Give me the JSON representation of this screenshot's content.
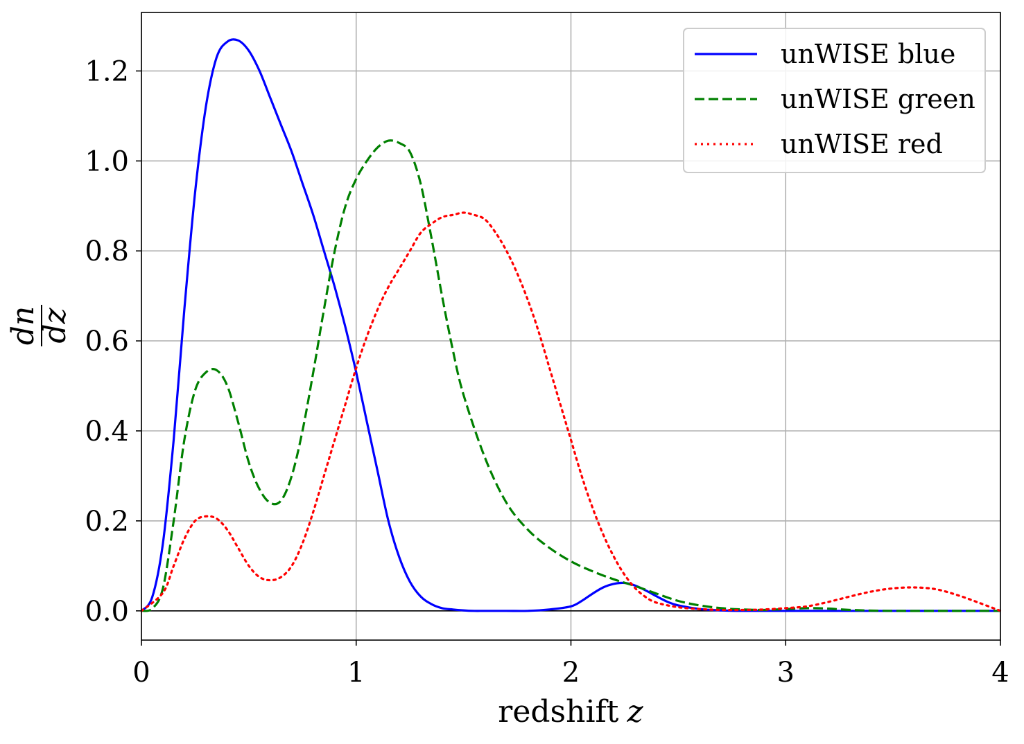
{
  "chart_data": {
    "type": "line",
    "xlabel": "redshift",
    "xlabel_var": "z",
    "ylabel_num": "dn",
    "ylabel_den": "dz",
    "xlim": [
      0,
      4
    ],
    "ylim": [
      -0.065,
      1.33
    ],
    "xticks": [
      0,
      1,
      2,
      3,
      4
    ],
    "xtick_labels": [
      "0",
      "1",
      "2",
      "3",
      "4"
    ],
    "yticks": [
      0.0,
      0.2,
      0.4,
      0.6,
      0.8,
      1.0,
      1.2
    ],
    "ytick_labels": [
      "0.0",
      "0.2",
      "0.4",
      "0.6",
      "0.8",
      "1.0",
      "1.2"
    ],
    "grid": true,
    "legend_position": "top-right",
    "series": [
      {
        "name": "unWISE blue",
        "color": "#0000ff",
        "style": "solid",
        "x": [
          0,
          0.05,
          0.1,
          0.15,
          0.2,
          0.25,
          0.3,
          0.35,
          0.4,
          0.45,
          0.5,
          0.55,
          0.6,
          0.65,
          0.7,
          0.75,
          0.8,
          0.85,
          0.9,
          0.95,
          1.0,
          1.05,
          1.1,
          1.15,
          1.2,
          1.25,
          1.3,
          1.35,
          1.4,
          1.45,
          1.5,
          1.55,
          1.6,
          1.7,
          1.8,
          1.9,
          2.0,
          2.05,
          2.1,
          2.15,
          2.2,
          2.25,
          2.3,
          2.35,
          2.4,
          2.45,
          2.5,
          2.6,
          2.7,
          2.8,
          3.0,
          3.5,
          4.0
        ],
        "y": [
          0.0,
          0.03,
          0.15,
          0.38,
          0.67,
          0.93,
          1.12,
          1.23,
          1.265,
          1.268,
          1.245,
          1.2,
          1.14,
          1.08,
          1.02,
          0.95,
          0.88,
          0.8,
          0.72,
          0.63,
          0.53,
          0.42,
          0.31,
          0.2,
          0.12,
          0.065,
          0.032,
          0.015,
          0.006,
          0.003,
          0.001,
          0.0,
          0.0,
          0.0,
          0.0,
          0.003,
          0.01,
          0.022,
          0.038,
          0.052,
          0.06,
          0.062,
          0.056,
          0.045,
          0.032,
          0.02,
          0.012,
          0.004,
          0.001,
          0.0,
          0.0,
          0.0,
          0.0
        ]
      },
      {
        "name": "unWISE green",
        "color": "#008000",
        "style": "dashed",
        "x": [
          0,
          0.05,
          0.1,
          0.15,
          0.2,
          0.25,
          0.3,
          0.35,
          0.4,
          0.45,
          0.5,
          0.55,
          0.6,
          0.65,
          0.7,
          0.75,
          0.8,
          0.85,
          0.9,
          0.95,
          1.0,
          1.05,
          1.1,
          1.15,
          1.2,
          1.25,
          1.3,
          1.35,
          1.4,
          1.45,
          1.5,
          1.6,
          1.7,
          1.8,
          1.9,
          2.0,
          2.1,
          2.2,
          2.3,
          2.4,
          2.5,
          2.6,
          2.7,
          2.8,
          2.9,
          3.0,
          3.1,
          3.2,
          3.3,
          3.5,
          4.0
        ],
        "y": [
          0.0,
          0.005,
          0.05,
          0.2,
          0.38,
          0.49,
          0.53,
          0.535,
          0.5,
          0.42,
          0.33,
          0.27,
          0.24,
          0.245,
          0.3,
          0.4,
          0.53,
          0.67,
          0.8,
          0.9,
          0.96,
          1.0,
          1.03,
          1.045,
          1.04,
          1.02,
          0.95,
          0.83,
          0.7,
          0.58,
          0.48,
          0.34,
          0.24,
          0.18,
          0.14,
          0.11,
          0.088,
          0.07,
          0.055,
          0.038,
          0.022,
          0.012,
          0.006,
          0.003,
          0.002,
          0.004,
          0.006,
          0.005,
          0.002,
          0.0,
          0.0
        ]
      },
      {
        "name": "unWISE red",
        "color": "#ff0000",
        "style": "dotted",
        "x": [
          0,
          0.1,
          0.15,
          0.2,
          0.25,
          0.3,
          0.35,
          0.4,
          0.45,
          0.5,
          0.55,
          0.6,
          0.65,
          0.7,
          0.75,
          0.8,
          0.85,
          0.9,
          0.95,
          1.0,
          1.05,
          1.1,
          1.15,
          1.2,
          1.25,
          1.3,
          1.35,
          1.4,
          1.45,
          1.5,
          1.55,
          1.6,
          1.65,
          1.7,
          1.75,
          1.8,
          1.85,
          1.9,
          1.95,
          2.0,
          2.05,
          2.1,
          2.15,
          2.2,
          2.25,
          2.3,
          2.35,
          2.4,
          2.5,
          2.6,
          2.7,
          2.8,
          2.9,
          3.0,
          3.1,
          3.2,
          3.3,
          3.4,
          3.5,
          3.6,
          3.7,
          3.8,
          3.9,
          4.0
        ],
        "y": [
          0.0,
          0.04,
          0.1,
          0.16,
          0.2,
          0.21,
          0.205,
          0.18,
          0.14,
          0.1,
          0.075,
          0.068,
          0.075,
          0.1,
          0.15,
          0.22,
          0.3,
          0.38,
          0.46,
          0.54,
          0.61,
          0.67,
          0.72,
          0.76,
          0.8,
          0.84,
          0.86,
          0.875,
          0.88,
          0.885,
          0.88,
          0.87,
          0.84,
          0.8,
          0.75,
          0.69,
          0.62,
          0.54,
          0.46,
          0.38,
          0.3,
          0.23,
          0.17,
          0.12,
          0.08,
          0.05,
          0.03,
          0.018,
          0.008,
          0.004,
          0.002,
          0.002,
          0.003,
          0.006,
          0.01,
          0.02,
          0.032,
          0.043,
          0.05,
          0.052,
          0.048,
          0.035,
          0.018,
          0.0
        ]
      }
    ]
  }
}
